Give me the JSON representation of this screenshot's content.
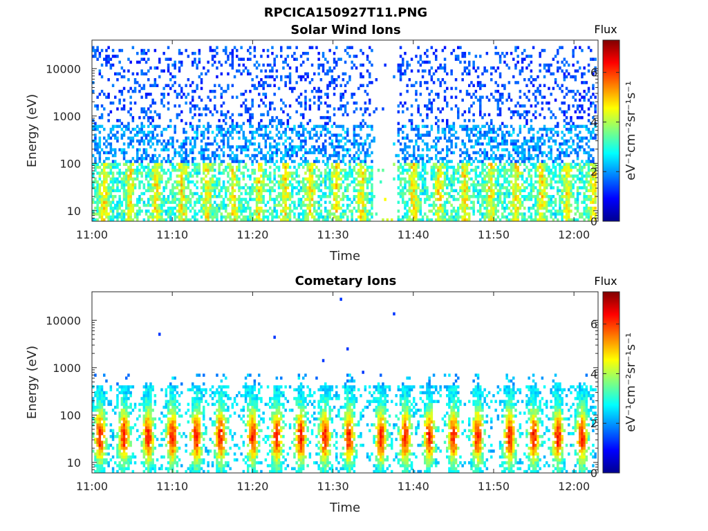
{
  "figure_title": "RPCICA150927T11.PNG",
  "chart_data": [
    {
      "type": "heatmap",
      "title": "Solar Wind Ions",
      "xlabel": "Time",
      "ylabel": "Energy (eV)",
      "y_scale": "log",
      "ylim": [
        6,
        40000
      ],
      "xlim": [
        "11:00",
        "12:03"
      ],
      "x_ticks": [
        "11:00",
        "11:10",
        "11:20",
        "11:30",
        "11:40",
        "11:50",
        "12:00"
      ],
      "y_ticks": [
        "10",
        "100",
        "1000",
        "10000"
      ],
      "colorbar": {
        "label": "Flux",
        "units": "eV⁻¹cm⁻²sr⁻¹s⁻¹",
        "range": [
          0,
          7.3
        ],
        "ticks": [
          "0",
          "2",
          "4",
          "6"
        ],
        "colormap": "jet"
      },
      "description": "Sparse scattered counts with flux ~1-2 at 1000-20000 eV; denser flux ~2-4 below 300 eV with periodic enhancements near 30-100 eV; data gap around 11:35-11:38",
      "data_gap": [
        "11:35",
        "11:38"
      ]
    },
    {
      "type": "heatmap",
      "title": "Cometary Ions",
      "xlabel": "Time",
      "ylabel": "Energy (eV)",
      "y_scale": "log",
      "ylim": [
        6,
        40000
      ],
      "xlim": [
        "11:00",
        "12:03"
      ],
      "x_ticks": [
        "11:00",
        "11:10",
        "11:20",
        "11:30",
        "11:40",
        "11:50",
        "12:00"
      ],
      "y_ticks": [
        "10",
        "100",
        "1000",
        "10000"
      ],
      "colorbar": {
        "label": "Flux",
        "units": "eV⁻¹cm⁻²sr⁻¹s⁻¹",
        "range": [
          0,
          7.3
        ],
        "ticks": [
          "0",
          "2",
          "4",
          "6"
        ],
        "colormap": "jet"
      },
      "description": "Periodic vertical bands roughly every 3.2 minutes spanning 6-300 eV, peak flux ~5-6 around 20-60 eV; a few isolated high-energy points",
      "band_centers": [
        "11:01",
        "11:04",
        "11:07",
        "11:10",
        "11:13",
        "11:16",
        "11:20",
        "11:23",
        "11:26",
        "11:29",
        "11:32",
        "11:36",
        "11:39",
        "11:42",
        "11:45",
        "11:48",
        "11:52",
        "11:55",
        "11:58",
        "12:01"
      ]
    }
  ]
}
